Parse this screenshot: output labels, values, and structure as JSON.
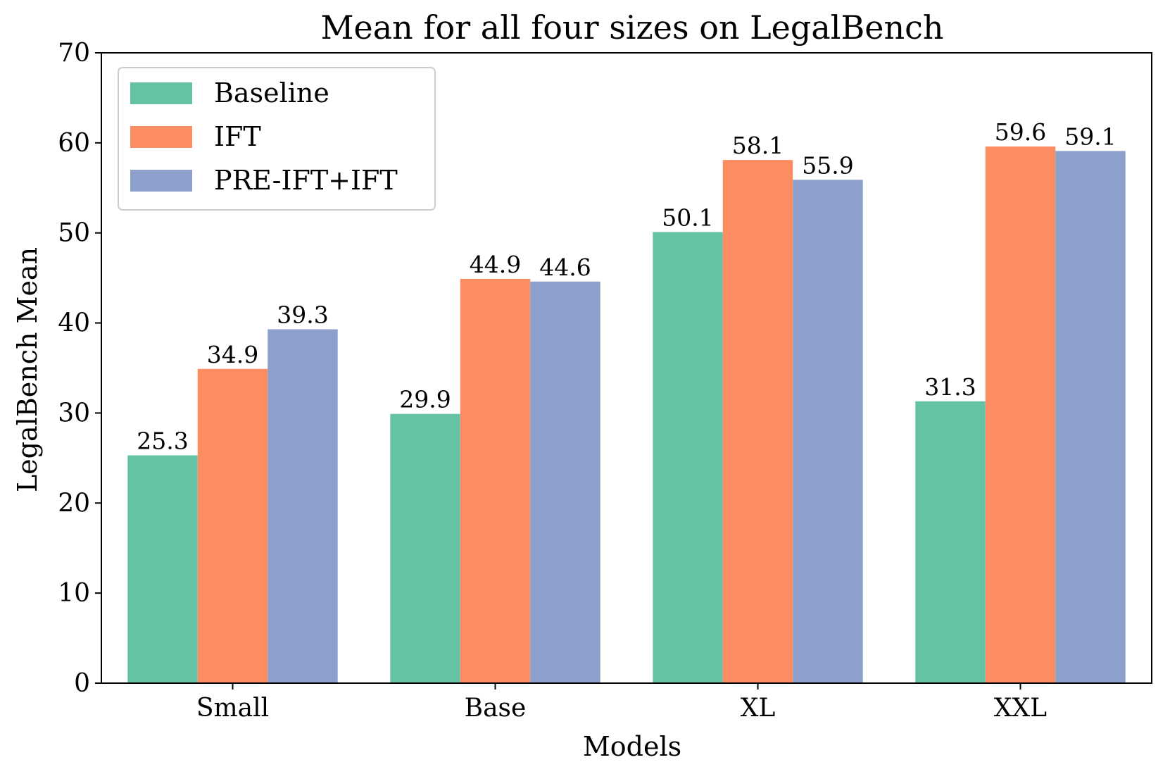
{
  "chart_data": {
    "type": "bar",
    "title": "Mean for all four sizes on LegalBench",
    "xlabel": "Models",
    "ylabel": "LegalBench Mean",
    "categories": [
      "Small",
      "Base",
      "XL",
      "XXL"
    ],
    "series": [
      {
        "name": "Baseline",
        "color": "#66c2a5",
        "values": [
          25.3,
          29.9,
          50.1,
          31.3
        ],
        "labels": [
          "25.3",
          "29.9",
          "50.1",
          "31.3"
        ]
      },
      {
        "name": "IFT",
        "color": "#fc8d62",
        "values": [
          34.9,
          44.9,
          58.1,
          59.6
        ],
        "labels": [
          "34.9",
          "44.9",
          "58.1",
          "59.6"
        ]
      },
      {
        "name": "PRE-IFT+IFT",
        "color": "#8da0cb",
        "values": [
          39.3,
          44.6,
          55.9,
          59.1
        ],
        "labels": [
          "39.3",
          "44.6",
          "55.9",
          "59.1"
        ]
      }
    ],
    "ylim": [
      0,
      70
    ],
    "yticks": [
      "0",
      "10",
      "20",
      "30",
      "40",
      "50",
      "60",
      "70"
    ],
    "grid": false,
    "legend": "top-left"
  }
}
